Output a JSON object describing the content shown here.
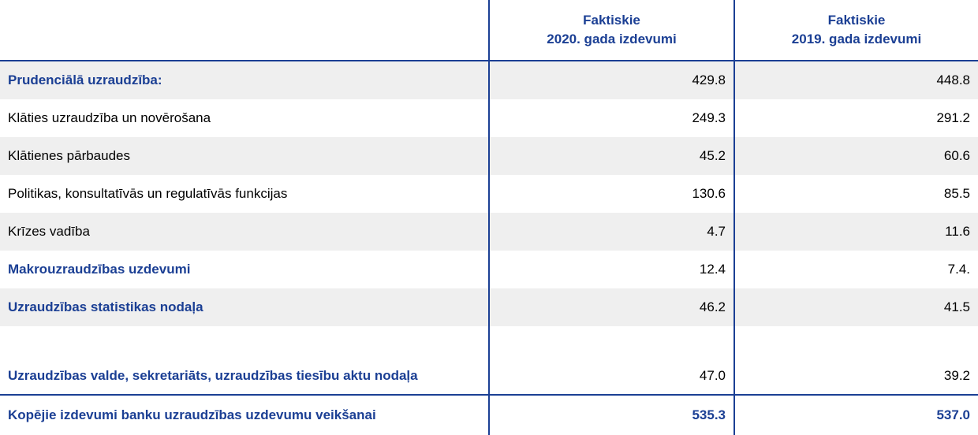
{
  "table": {
    "columns": [
      {
        "line1": "Faktiskie",
        "line2": "2020. gada izdevumi"
      },
      {
        "line1": "Faktiskie",
        "line2": "2019. gada izdevumi"
      }
    ],
    "rows": [
      [
        "Prudenciālā uzraudzība:",
        "429.8",
        "448.8"
      ],
      [
        "Klāties uzraudzība un novērošana",
        "249.3",
        "291.2"
      ],
      [
        "Klātienes pārbaudes",
        "45.2",
        "60.6"
      ],
      [
        "Politikas, konsultatīvās un regulatīvās funkcijas",
        "130.6",
        "85.5"
      ],
      [
        "Krīzes vadība",
        "4.7",
        "11.6"
      ],
      [
        "Makrouzraudzības uzdevumi",
        "12.4",
        "7.4."
      ],
      [
        "Uzraudzības statistikas nodaļa",
        "46.2",
        "41.5"
      ],
      [
        "Uzraudzības valde, sekretariāts, uzraudzības tiesību aktu nodaļa",
        "47.0",
        "39.2"
      ]
    ],
    "total": [
      "Kopējie izdevumi banku uzraudzības uzdevumu veikšanai",
      "535.3",
      "537.0"
    ]
  }
}
